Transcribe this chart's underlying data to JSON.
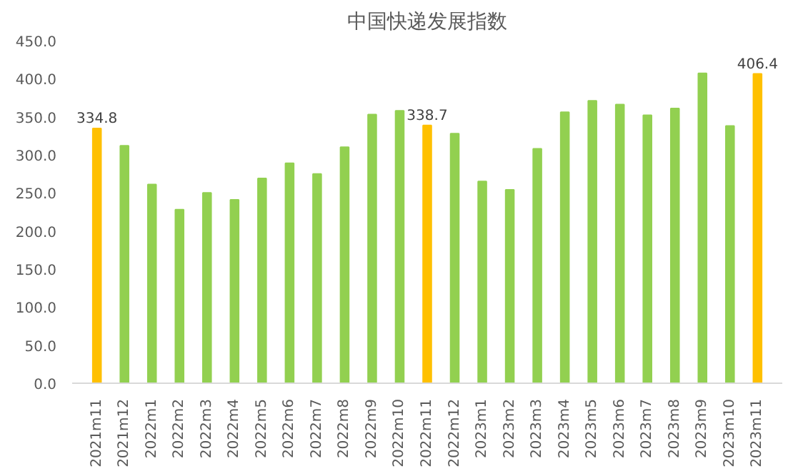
{
  "chart_data": {
    "type": "bar",
    "title": "中国快递发展指数",
    "categories": [
      "2021m11",
      "2021m12",
      "2022m1",
      "2022m2",
      "2022m3",
      "2022m4",
      "2022m5",
      "2022m6",
      "2022m7",
      "2022m8",
      "2022m9",
      "2022m10",
      "2022m11",
      "2022m12",
      "2023m1",
      "2023m2",
      "2023m3",
      "2023m4",
      "2023m5",
      "2023m6",
      "2023m7",
      "2023m8",
      "2023m9",
      "2023m10",
      "2023m11"
    ],
    "values": [
      334.8,
      312,
      261,
      228,
      250,
      241,
      269,
      289,
      275,
      310,
      353,
      358,
      338.7,
      328,
      265,
      254,
      308,
      356,
      371,
      366,
      352,
      361,
      407,
      338,
      406.4
    ],
    "colors": [
      "#ffc000",
      "#92d050",
      "#92d050",
      "#92d050",
      "#92d050",
      "#92d050",
      "#92d050",
      "#92d050",
      "#92d050",
      "#92d050",
      "#92d050",
      "#92d050",
      "#ffc000",
      "#92d050",
      "#92d050",
      "#92d050",
      "#92d050",
      "#92d050",
      "#92d050",
      "#92d050",
      "#92d050",
      "#92d050",
      "#92d050",
      "#92d050",
      "#ffc000"
    ],
    "value_labels": [
      "334.8",
      null,
      null,
      null,
      null,
      null,
      null,
      null,
      null,
      null,
      null,
      null,
      "338.7",
      null,
      null,
      null,
      null,
      null,
      null,
      null,
      null,
      null,
      null,
      null,
      "406.4"
    ],
    "ylim": [
      0,
      450
    ],
    "yticks": [
      {
        "value": 0,
        "label": "0.0"
      },
      {
        "value": 50,
        "label": "50.0"
      },
      {
        "value": 100,
        "label": "100.0"
      },
      {
        "value": 150,
        "label": "150.0"
      },
      {
        "value": 200,
        "label": "200.0"
      },
      {
        "value": 250,
        "label": "250.0"
      },
      {
        "value": 300,
        "label": "300.0"
      },
      {
        "value": 350,
        "label": "350.0"
      },
      {
        "value": 400,
        "label": "400.0"
      },
      {
        "value": 450,
        "label": "450.0"
      }
    ],
    "grid": false
  }
}
